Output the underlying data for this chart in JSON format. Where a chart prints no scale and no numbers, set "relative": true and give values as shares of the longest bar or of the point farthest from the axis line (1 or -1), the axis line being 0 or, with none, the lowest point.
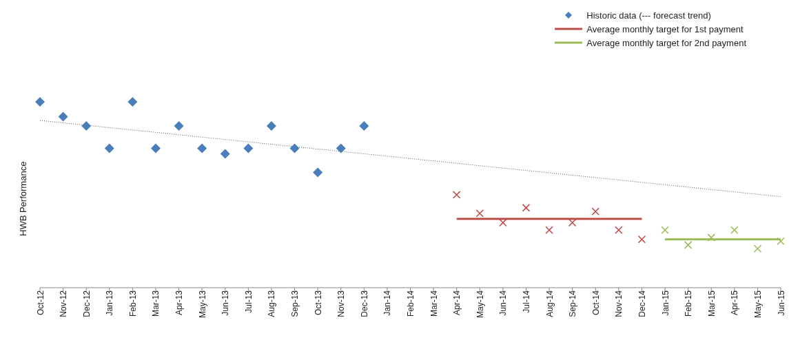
{
  "chart_data": {
    "type": "scatter",
    "relative": true,
    "ylabel": "HWB Performance",
    "legend": "top right",
    "grid": false,
    "categories": [
      "Oct-12",
      "Nov-12",
      "Dec-12",
      "Jan-13",
      "Feb-13",
      "Mar-13",
      "Apr-13",
      "May-13",
      "Jun-13",
      "Jul-13",
      "Aug-13",
      "Sep-13",
      "Oct-13",
      "Nov-13",
      "Dec-13",
      "Jan-14",
      "Feb-14",
      "Mar-14",
      "Apr-14",
      "May-14",
      "Jun-14",
      "Jul-14",
      "Aug-14",
      "Sep-14",
      "Oct-14",
      "Nov-14",
      "Dec-14",
      "Jan-15",
      "Feb-15",
      "Mar-15",
      "Apr-15",
      "May-15",
      "Jun-15"
    ],
    "series": [
      {
        "name": "Historic data (--- forecast trend)",
        "marker": "diamond",
        "color": "#4a7ebb",
        "values": [
          1.0,
          0.92,
          0.87,
          0.75,
          1.0,
          0.75,
          0.87,
          0.75,
          0.72,
          0.75,
          0.87,
          0.75,
          0.62,
          0.75,
          0.87,
          null,
          null,
          null,
          null,
          null,
          null,
          null,
          null,
          null,
          null,
          null,
          null,
          null,
          null,
          null,
          null,
          null,
          null
        ]
      },
      {
        "type": "line",
        "marker": "none",
        "line_style": "dotted",
        "color": "#555555",
        "x": [
          "Oct-12",
          "Jun-15"
        ],
        "values": [
          0.9,
          0.49
        ]
      },
      {
        "name": "Average monthly target for 1st payment",
        "type": "line",
        "marker": "none",
        "line_style": "solid",
        "color": "#be4b48",
        "x": [
          "Apr-14",
          "Dec-14"
        ],
        "values": [
          0.37,
          0.37
        ]
      },
      {
        "name": "Average monthly target for 2nd payment",
        "type": "line",
        "marker": "none",
        "line_style": "solid",
        "color": "#9bbb59",
        "x": [
          "Jan-15",
          "Jun-15"
        ],
        "values": [
          0.26,
          0.26
        ]
      },
      {
        "marker": "cross",
        "color": "#be4b48",
        "values": [
          null,
          null,
          null,
          null,
          null,
          null,
          null,
          null,
          null,
          null,
          null,
          null,
          null,
          null,
          null,
          null,
          null,
          null,
          0.5,
          0.4,
          0.35,
          0.43,
          0.31,
          0.35,
          0.41,
          0.31,
          0.26,
          null,
          null,
          null,
          null,
          null,
          null
        ]
      },
      {
        "marker": "cross",
        "color": "#9bbb59",
        "values": [
          null,
          null,
          null,
          null,
          null,
          null,
          null,
          null,
          null,
          null,
          null,
          null,
          null,
          null,
          null,
          null,
          null,
          null,
          null,
          null,
          null,
          null,
          null,
          null,
          null,
          null,
          null,
          0.31,
          0.23,
          0.27,
          0.31,
          0.21,
          0.25
        ]
      }
    ]
  }
}
